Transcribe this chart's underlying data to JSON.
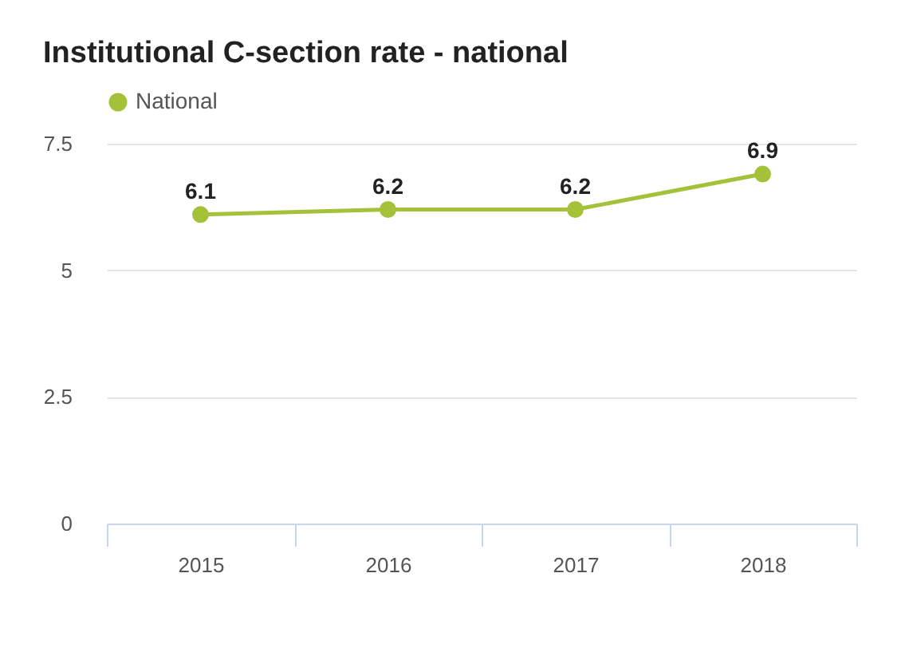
{
  "chart_data": {
    "type": "line",
    "title": "Institutional C-section rate - national",
    "categories": [
      "2015",
      "2016",
      "2017",
      "2018"
    ],
    "series": [
      {
        "name": "National",
        "color": "#a5c13a",
        "values": [
          6.1,
          6.2,
          6.2,
          6.9
        ]
      }
    ],
    "ylim": [
      0,
      7.5
    ],
    "yticks": [
      0,
      2.5,
      5,
      7.5
    ],
    "grid": "y",
    "legend": "top",
    "marker": "circle",
    "line_style": "solid",
    "data_labels": true
  }
}
